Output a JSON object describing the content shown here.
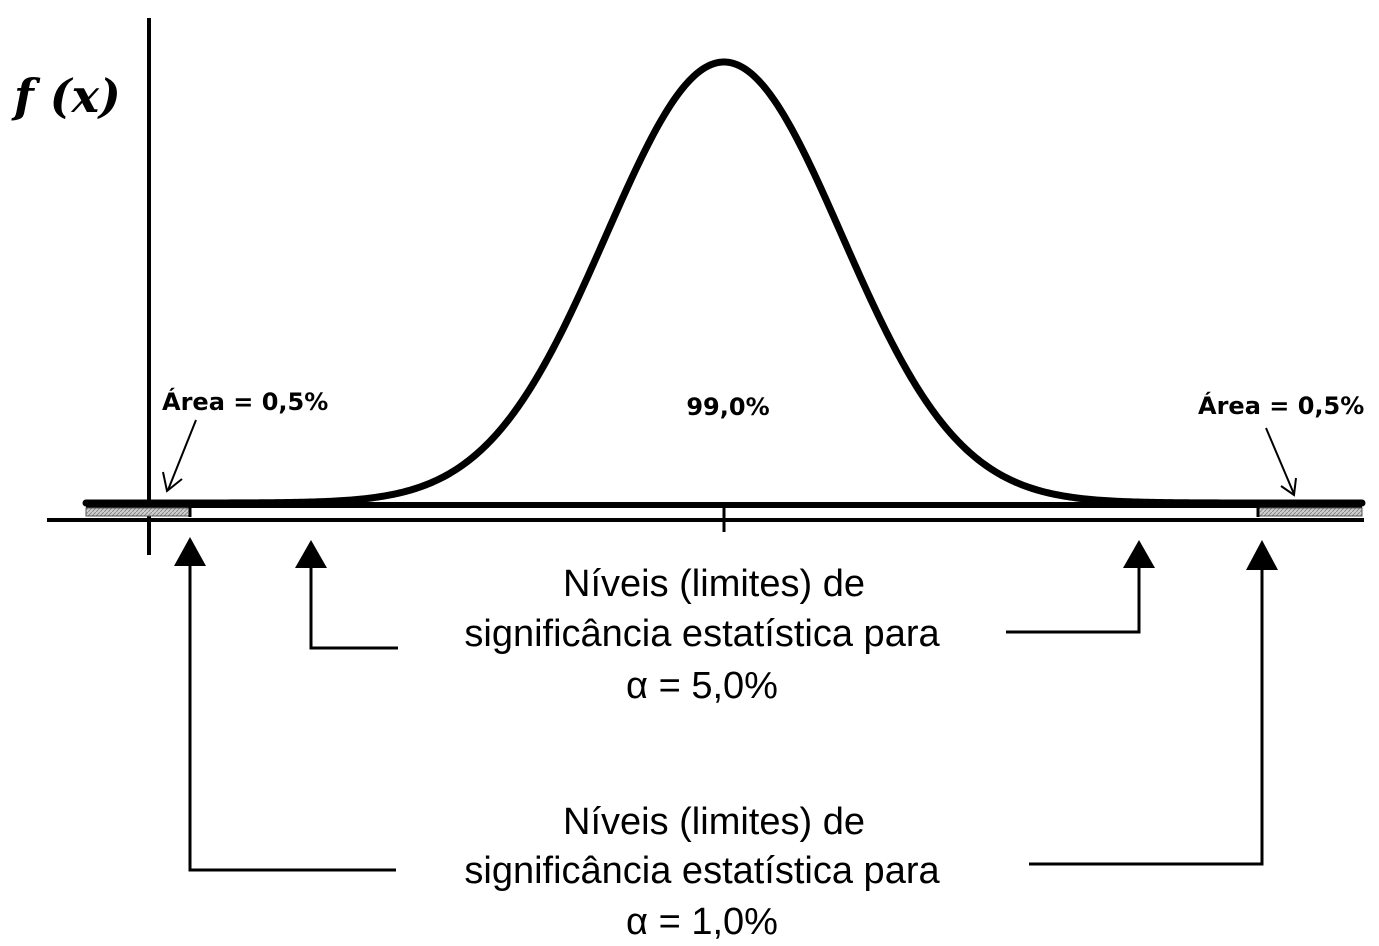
{
  "y_axis_label": "f (x)",
  "labels": {
    "area_left": "Área = 0,5%",
    "center": "99,0%",
    "area_right": "Área = 0,5%"
  },
  "annotation_5": {
    "line1": "Níveis (limites) de",
    "line2": "significância estatística para",
    "line3": "α = 5,0%"
  },
  "annotation_1": {
    "line1": "Níveis (limites) de",
    "line2": "significância estatística para",
    "line3": "α = 1,0%"
  },
  "colors": {
    "ink": "#000000",
    "shade": "#bdbdbd"
  }
}
